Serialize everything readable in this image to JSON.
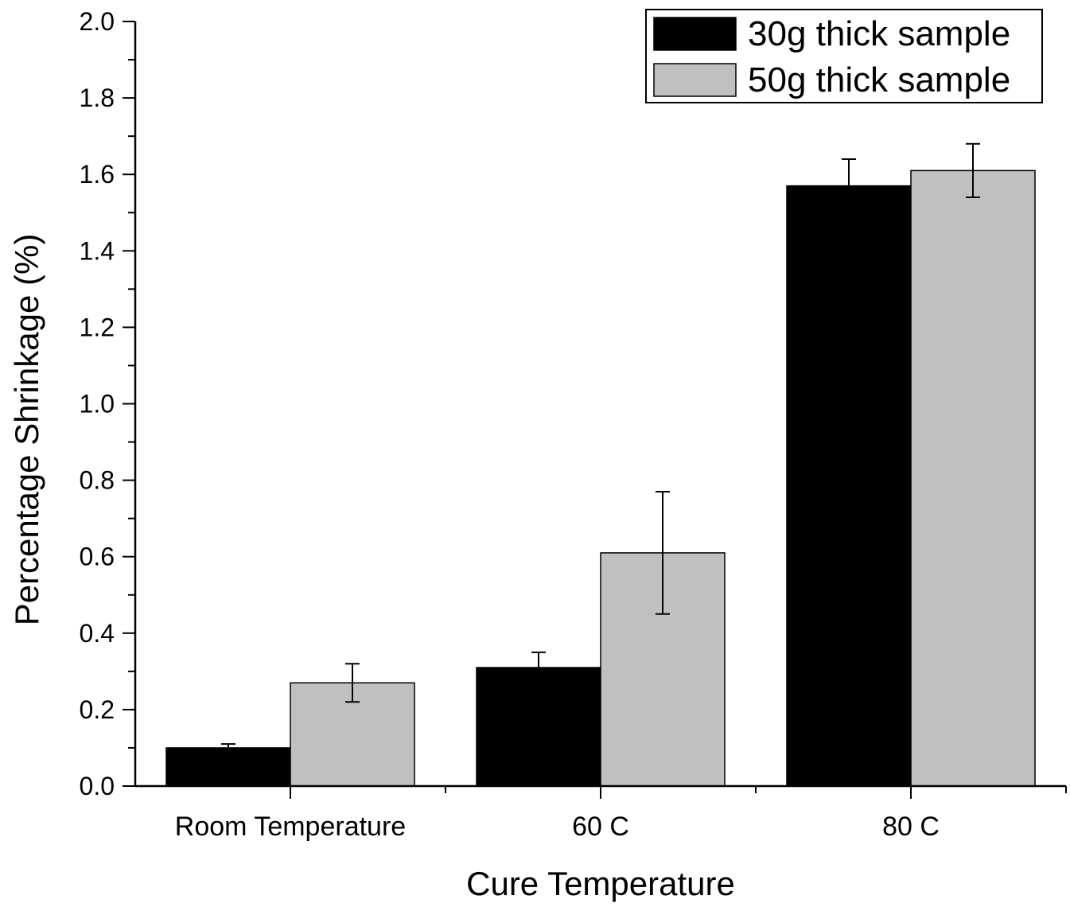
{
  "chart_data": {
    "type": "bar",
    "title": "",
    "xlabel": "Cure Temperature",
    "ylabel": "Percentage Shrinkage (%)",
    "ylim": [
      0.0,
      2.0
    ],
    "yticks": [
      "0.0",
      "0.2",
      "0.4",
      "0.6",
      "0.8",
      "1.0",
      "1.2",
      "1.4",
      "1.6",
      "1.8",
      "2.0"
    ],
    "categories": [
      "Room Temperature",
      "60 C",
      "80 C"
    ],
    "series": [
      {
        "name": "30g thick sample",
        "color": "#000000",
        "values": [
          0.1,
          0.31,
          1.57
        ],
        "errors": [
          0.01,
          0.04,
          0.07
        ]
      },
      {
        "name": "50g thick sample",
        "color": "#c0c0c0",
        "values": [
          0.27,
          0.61,
          1.61
        ],
        "errors": [
          0.05,
          0.16,
          0.07
        ]
      }
    ],
    "legend_position": "top-right",
    "grid": false,
    "error_bars": true
  }
}
